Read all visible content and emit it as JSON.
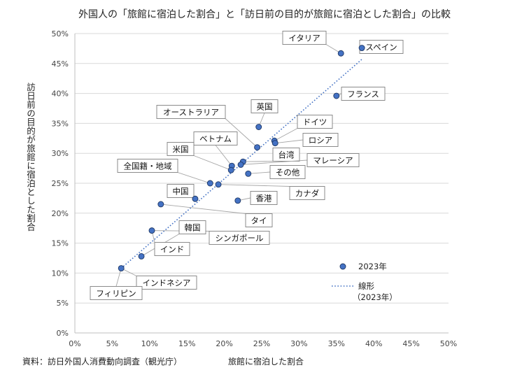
{
  "chart_data": {
    "type": "scatter",
    "title": "外国人の「旅館に宿泊した割合」と「訪日前の目的が旅館に宿泊とした割合」の比較",
    "xlabel": "旅館に宿泊した割合",
    "ylabel": "訪日前の目的が旅館に宿泊とした割合",
    "source": "資料：訪日外国人消費動向調査（観光庁）",
    "xlim": [
      0,
      50
    ],
    "ylim": [
      0,
      50
    ],
    "xticks": [
      "0%",
      "5%",
      "10%",
      "15%",
      "20%",
      "25%",
      "30%",
      "35%",
      "40%",
      "45%",
      "50%"
    ],
    "yticks": [
      "0%",
      "5%",
      "10%",
      "15%",
      "20%",
      "25%",
      "30%",
      "35%",
      "40%",
      "45%",
      "50%"
    ],
    "grid": "horizontal",
    "legend_position": "bottom-right",
    "colors": {
      "point": "#4472c4",
      "point_edge": "#1f3864",
      "trend": "#4472c4",
      "grid": "#d9d9d9"
    },
    "legend": [
      {
        "kind": "marker",
        "label": "2023年"
      },
      {
        "kind": "line",
        "label": "線形",
        "label2": "（2023年）"
      }
    ],
    "trendline": {
      "x": [
        6.2,
        38.4
      ],
      "y": [
        10.8,
        45.7
      ]
    },
    "points": [
      {
        "name": "スペイン",
        "x": 38.4,
        "y": 47.6
      },
      {
        "name": "イタリア",
        "x": 35.6,
        "y": 46.7
      },
      {
        "name": "フランス",
        "x": 35.0,
        "y": 39.6
      },
      {
        "name": "英国",
        "x": 24.6,
        "y": 34.4
      },
      {
        "name": "ドイツ",
        "x": 26.7,
        "y": 32.1
      },
      {
        "name": "ロシア",
        "x": 26.8,
        "y": 31.7
      },
      {
        "name": "オーストラリア",
        "x": 24.4,
        "y": 31.0
      },
      {
        "name": "台湾",
        "x": 22.5,
        "y": 28.6
      },
      {
        "name": "マレーシア",
        "x": 22.2,
        "y": 28.1
      },
      {
        "name": "ベトナム",
        "x": 21.0,
        "y": 27.9
      },
      {
        "name": "米国",
        "x": 20.9,
        "y": 27.2
      },
      {
        "name": "その他",
        "x": 23.2,
        "y": 26.6
      },
      {
        "name": "全国籍・地域",
        "x": 18.1,
        "y": 25.0
      },
      {
        "name": "カナダ",
        "x": 19.2,
        "y": 24.8
      },
      {
        "name": "中国",
        "x": 16.1,
        "y": 22.4
      },
      {
        "name": "香港",
        "x": 21.8,
        "y": 22.1
      },
      {
        "name": "タイ",
        "x": 11.5,
        "y": 21.5
      },
      {
        "name": "シンガポール",
        "x": 10.3,
        "y": 17.1
      },
      {
        "name": "韓国",
        "x": 8.9,
        "y": 12.8
      },
      {
        "name": "インドネシア",
        "x": 6.2,
        "y": 10.8
      }
    ],
    "extra_labels": [
      "インド",
      "フィリピン"
    ]
  }
}
